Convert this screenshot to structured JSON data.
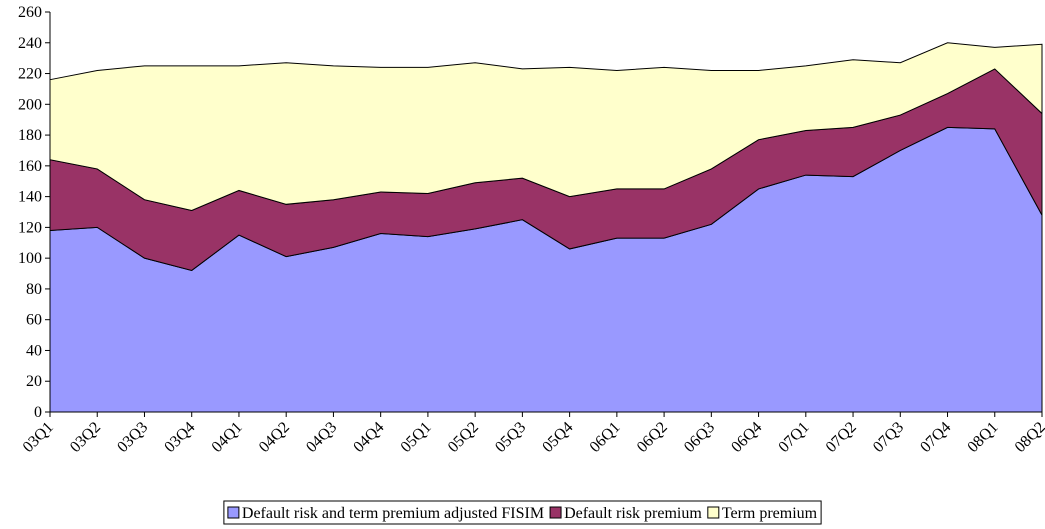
{
  "chart_data": {
    "type": "stacked_area",
    "categories": [
      "03Q1",
      "03Q2",
      "03Q3",
      "03Q4",
      "04Q1",
      "04Q2",
      "04Q3",
      "04Q4",
      "05Q1",
      "05Q2",
      "05Q3",
      "05Q4",
      "06Q1",
      "06Q2",
      "06Q3",
      "06Q4",
      "07Q1",
      "07Q2",
      "07Q3",
      "07Q4",
      "08Q1",
      "08Q2"
    ],
    "series": [
      {
        "name": "Default risk and term premium adjusted FISIM",
        "color": "#9999ff",
        "values": [
          118,
          120,
          100,
          92,
          115,
          101,
          107,
          116,
          114,
          119,
          125,
          106,
          113,
          113,
          122,
          145,
          154,
          153,
          170,
          185,
          184,
          128
        ]
      },
      {
        "name": "Default risk premium",
        "color": "#993366",
        "values": [
          46,
          38,
          38,
          39,
          29,
          34,
          31,
          27,
          28,
          30,
          27,
          34,
          32,
          32,
          36,
          32,
          29,
          32,
          23,
          22,
          39,
          66
        ]
      },
      {
        "name": "Term premium",
        "color": "#ffffcc",
        "values": [
          52,
          64,
          87,
          94,
          81,
          92,
          87,
          81,
          82,
          78,
          71,
          84,
          77,
          79,
          64,
          45,
          42,
          44,
          34,
          33,
          14,
          45
        ]
      }
    ],
    "ylim": [
      0,
      260
    ],
    "yticks": [
      0,
      20,
      40,
      60,
      80,
      100,
      120,
      140,
      160,
      180,
      200,
      220,
      240,
      260
    ],
    "legend": "bottom"
  }
}
